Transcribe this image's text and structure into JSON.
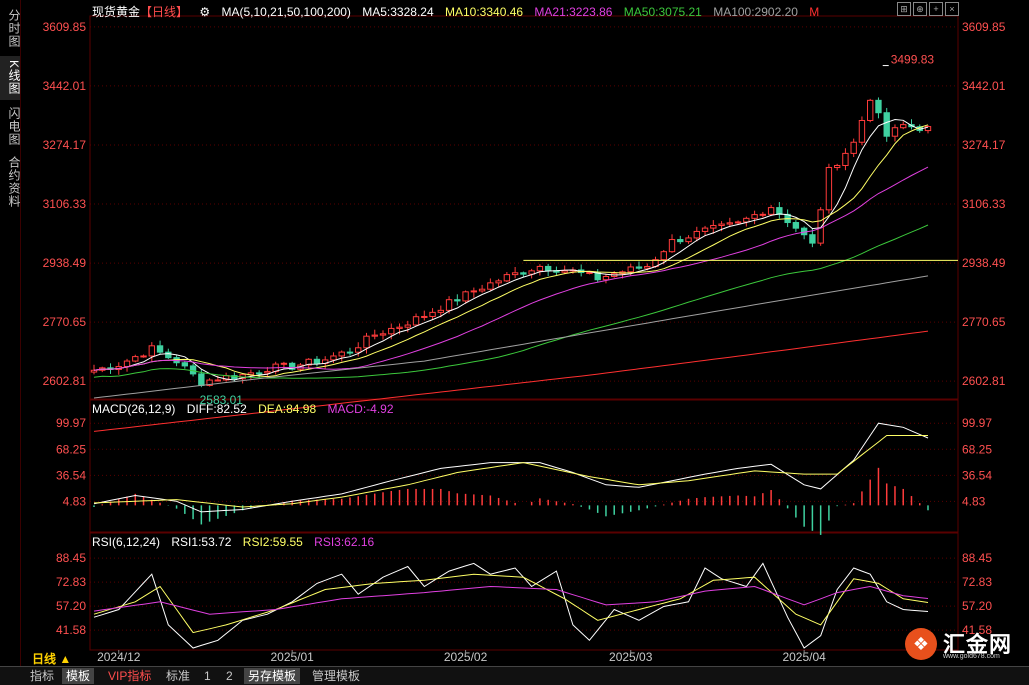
{
  "sidebar": [
    {
      "label": "分时图",
      "active": false
    },
    {
      "label": "K线图",
      "active": true
    },
    {
      "label": "闪电图",
      "active": false
    },
    {
      "label": "合约资料",
      "active": false
    }
  ],
  "header": {
    "instrument": "现货黄金",
    "period_tag": "【日线】",
    "ma_spec": "MA(5,10,21,50,100,200)",
    "ma5": "MA5:3328.24",
    "ma10": "MA10:3340.46",
    "ma21": "MA21:3223.86",
    "ma50": "MA50:3075.21",
    "ma100": "MA100:2902.20",
    "m_label": "M"
  },
  "macd_header": {
    "spec": "MACD(26,12,9)",
    "diff": "DIFF:82.52",
    "dea": "DEA:84.98",
    "macd": "MACD:-4.92"
  },
  "rsi_header": {
    "spec": "RSI(6,12,24)",
    "rsi1": "RSI1:53.72",
    "rsi2": "RSI2:59.55",
    "rsi3": "RSI3:62.16"
  },
  "colors": {
    "up": "#ff3b3b",
    "down": "#3fd1a0",
    "ma5": "#ffffff",
    "ma10": "#ffff66",
    "ma21": "#e040e0",
    "ma50": "#3cc83c",
    "ma100": "#a0a0a0",
    "ma200": "#ff3030",
    "axis_text": "#ff5050",
    "grid": "#5a0000",
    "hline": "#ffff66"
  },
  "chart_data": [
    {
      "type": "candlestick",
      "name": "price",
      "ylim": [
        2555,
        3635
      ],
      "yticks": [
        "3609.85",
        "3442.01",
        "3274.17",
        "3106.33",
        "2938.49",
        "2770.65",
        "2602.81"
      ],
      "ytick_values": [
        3609.85,
        3442.01,
        3274.17,
        3106.33,
        2938.49,
        2770.65,
        2602.81
      ],
      "x_labels": [
        {
          "label": "2024/12",
          "index": 3
        },
        {
          "label": "2025/01",
          "index": 24
        },
        {
          "label": "2025/02",
          "index": 45
        },
        {
          "label": "2025/03",
          "index": 65
        },
        {
          "label": "2025/04",
          "index": 86
        }
      ],
      "annotations": [
        {
          "text": "3499.83",
          "index": 96,
          "value": 3499.83
        },
        {
          "text": "2583.01",
          "index": 14,
          "value": 2583.01
        }
      ],
      "hline_value": 2946,
      "anchors_close": [
        [
          0,
          2634
        ],
        [
          3,
          2650
        ],
        [
          7,
          2695
        ],
        [
          10,
          2660
        ],
        [
          13,
          2600
        ],
        [
          15,
          2612
        ],
        [
          18,
          2620
        ],
        [
          21,
          2640
        ],
        [
          24,
          2645
        ],
        [
          28,
          2665
        ],
        [
          31,
          2690
        ],
        [
          34,
          2735
        ],
        [
          37,
          2760
        ],
        [
          40,
          2790
        ],
        [
          43,
          2825
        ],
        [
          46,
          2860
        ],
        [
          50,
          2900
        ],
        [
          54,
          2930
        ],
        [
          58,
          2915
        ],
        [
          61,
          2895
        ],
        [
          64,
          2915
        ],
        [
          67,
          2930
        ],
        [
          70,
          3000
        ],
        [
          74,
          3030
        ],
        [
          78,
          3050
        ],
        [
          82,
          3100
        ],
        [
          85,
          3040
        ],
        [
          87,
          2990
        ],
        [
          89,
          3200
        ],
        [
          92,
          3280
        ],
        [
          94,
          3410
        ],
        [
          96,
          3300
        ],
        [
          98,
          3330
        ],
        [
          101,
          3320
        ]
      ],
      "anchors_ma100": [
        [
          0,
          2555
        ],
        [
          20,
          2610
        ],
        [
          40,
          2660
        ],
        [
          60,
          2740
        ],
        [
          80,
          2820
        ],
        [
          101,
          2902
        ]
      ],
      "anchors_ma200": [
        [
          0,
          2460
        ],
        [
          30,
          2540
        ],
        [
          60,
          2620
        ],
        [
          80,
          2680
        ],
        [
          101,
          2745
        ]
      ],
      "count": 102
    },
    {
      "type": "macd",
      "name": "MACD",
      "ylim": [
        -30,
        110
      ],
      "yticks": [
        "99.97",
        "68.25",
        "36.54",
        "4.83"
      ],
      "ytick_values": [
        99.97,
        68.25,
        36.54,
        4.83
      ],
      "diff_anchors": [
        [
          0,
          2
        ],
        [
          5,
          12
        ],
        [
          10,
          5
        ],
        [
          13,
          -8
        ],
        [
          18,
          -5
        ],
        [
          24,
          5
        ],
        [
          30,
          14
        ],
        [
          36,
          30
        ],
        [
          42,
          45
        ],
        [
          48,
          52
        ],
        [
          54,
          52
        ],
        [
          58,
          40
        ],
        [
          62,
          25
        ],
        [
          66,
          22
        ],
        [
          70,
          30
        ],
        [
          74,
          38
        ],
        [
          78,
          45
        ],
        [
          82,
          50
        ],
        [
          86,
          25
        ],
        [
          88,
          20
        ],
        [
          92,
          55
        ],
        [
          95,
          100
        ],
        [
          98,
          95
        ],
        [
          101,
          82
        ]
      ],
      "dea_anchors": [
        [
          0,
          3
        ],
        [
          10,
          7
        ],
        [
          18,
          -2
        ],
        [
          24,
          2
        ],
        [
          30,
          10
        ],
        [
          38,
          25
        ],
        [
          44,
          40
        ],
        [
          52,
          52
        ],
        [
          60,
          35
        ],
        [
          66,
          25
        ],
        [
          72,
          30
        ],
        [
          80,
          42
        ],
        [
          86,
          38
        ],
        [
          90,
          38
        ],
        [
          96,
          85
        ],
        [
          101,
          85
        ]
      ]
    },
    {
      "type": "line",
      "name": "RSI",
      "ylim": [
        30,
        95
      ],
      "yticks": [
        "88.45",
        "72.83",
        "57.20",
        "41.58"
      ],
      "ytick_values": [
        88.45,
        72.83,
        57.2,
        41.58
      ],
      "rsi1_anchors": [
        [
          0,
          50
        ],
        [
          3,
          55
        ],
        [
          7,
          78
        ],
        [
          9,
          45
        ],
        [
          12,
          30
        ],
        [
          15,
          35
        ],
        [
          18,
          48
        ],
        [
          21,
          52
        ],
        [
          24,
          60
        ],
        [
          27,
          72
        ],
        [
          30,
          78
        ],
        [
          32,
          65
        ],
        [
          35,
          76
        ],
        [
          38,
          83
        ],
        [
          40,
          70
        ],
        [
          43,
          80
        ],
        [
          46,
          85
        ],
        [
          48,
          78
        ],
        [
          51,
          82
        ],
        [
          53,
          70
        ],
        [
          56,
          80
        ],
        [
          58,
          45
        ],
        [
          60,
          35
        ],
        [
          63,
          55
        ],
        [
          66,
          48
        ],
        [
          69,
          57
        ],
        [
          72,
          60
        ],
        [
          74,
          82
        ],
        [
          76,
          75
        ],
        [
          79,
          70
        ],
        [
          81,
          85
        ],
        [
          84,
          50
        ],
        [
          86,
          30
        ],
        [
          88,
          38
        ],
        [
          90,
          68
        ],
        [
          92,
          82
        ],
        [
          94,
          78
        ],
        [
          96,
          60
        ],
        [
          98,
          55
        ],
        [
          101,
          53.72
        ]
      ],
      "rsi2_anchors": [
        [
          0,
          52
        ],
        [
          5,
          60
        ],
        [
          8,
          70
        ],
        [
          12,
          40
        ],
        [
          16,
          45
        ],
        [
          22,
          55
        ],
        [
          28,
          68
        ],
        [
          34,
          72
        ],
        [
          40,
          74
        ],
        [
          46,
          78
        ],
        [
          52,
          76
        ],
        [
          57,
          62
        ],
        [
          61,
          48
        ],
        [
          66,
          55
        ],
        [
          71,
          62
        ],
        [
          75,
          74
        ],
        [
          80,
          76
        ],
        [
          85,
          52
        ],
        [
          88,
          45
        ],
        [
          92,
          75
        ],
        [
          95,
          72
        ],
        [
          98,
          62
        ],
        [
          101,
          59.55
        ]
      ],
      "rsi3_anchors": [
        [
          0,
          54
        ],
        [
          8,
          60
        ],
        [
          14,
          52
        ],
        [
          22,
          55
        ],
        [
          30,
          62
        ],
        [
          40,
          66
        ],
        [
          48,
          70
        ],
        [
          56,
          68
        ],
        [
          62,
          58
        ],
        [
          68,
          60
        ],
        [
          74,
          67
        ],
        [
          80,
          70
        ],
        [
          86,
          58
        ],
        [
          90,
          66
        ],
        [
          94,
          70
        ],
        [
          98,
          64
        ],
        [
          101,
          62.16
        ]
      ]
    }
  ],
  "toolbar": {
    "period": "日线",
    "items": [
      "指标",
      "模板",
      "VIP指标",
      "标准",
      "1",
      "2",
      "另存模板",
      "管理模板"
    ]
  },
  "brand": {
    "name": "汇金网",
    "url": "www.gold678.com"
  }
}
